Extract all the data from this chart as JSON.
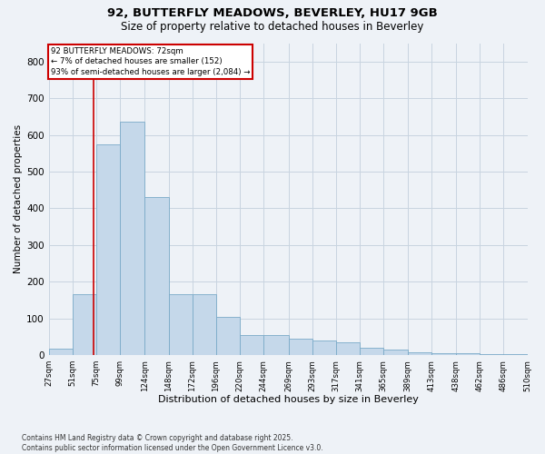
{
  "title1": "92, BUTTERFLY MEADOWS, BEVERLEY, HU17 9GB",
  "title2": "Size of property relative to detached houses in Beverley",
  "xlabel": "Distribution of detached houses by size in Beverley",
  "ylabel": "Number of detached properties",
  "footnote": "Contains HM Land Registry data © Crown copyright and database right 2025.\nContains public sector information licensed under the Open Government Licence v3.0.",
  "bar_left_edges": [
    27,
    51,
    75,
    99,
    124,
    148,
    172,
    196,
    220,
    244,
    269,
    293,
    317,
    341,
    365,
    389,
    413,
    438,
    462,
    486
  ],
  "bar_widths": [
    24,
    24,
    24,
    25,
    24,
    24,
    24,
    24,
    24,
    25,
    24,
    24,
    24,
    24,
    24,
    24,
    25,
    24,
    24,
    24
  ],
  "bar_heights": [
    18,
    165,
    575,
    635,
    430,
    165,
    165,
    105,
    55,
    55,
    45,
    40,
    35,
    20,
    15,
    8,
    5,
    5,
    3,
    3
  ],
  "bar_color": "#c5d8ea",
  "bar_edge_color": "#7aaac8",
  "grid_color": "#c8d4e0",
  "bg_color": "#eef2f7",
  "vline_x": 72,
  "vline_color": "#cc0000",
  "annotation_text": "92 BUTTERFLY MEADOWS: 72sqm\n← 7% of detached houses are smaller (152)\n93% of semi-detached houses are larger (2,084) →",
  "annotation_box_color": "#cc0000",
  "ylim": [
    0,
    850
  ],
  "yticks": [
    0,
    100,
    200,
    300,
    400,
    500,
    600,
    700,
    800
  ],
  "xlim_min": 27,
  "xlim_max": 510,
  "tick_labels": [
    "27sqm",
    "51sqm",
    "75sqm",
    "99sqm",
    "124sqm",
    "148sqm",
    "172sqm",
    "196sqm",
    "220sqm",
    "244sqm",
    "269sqm",
    "293sqm",
    "317sqm",
    "341sqm",
    "365sqm",
    "389sqm",
    "413sqm",
    "438sqm",
    "462sqm",
    "486sqm",
    "510sqm"
  ],
  "tick_positions": [
    27,
    51,
    75,
    99,
    124,
    148,
    172,
    196,
    220,
    244,
    269,
    293,
    317,
    341,
    365,
    389,
    413,
    438,
    462,
    486,
    510
  ]
}
